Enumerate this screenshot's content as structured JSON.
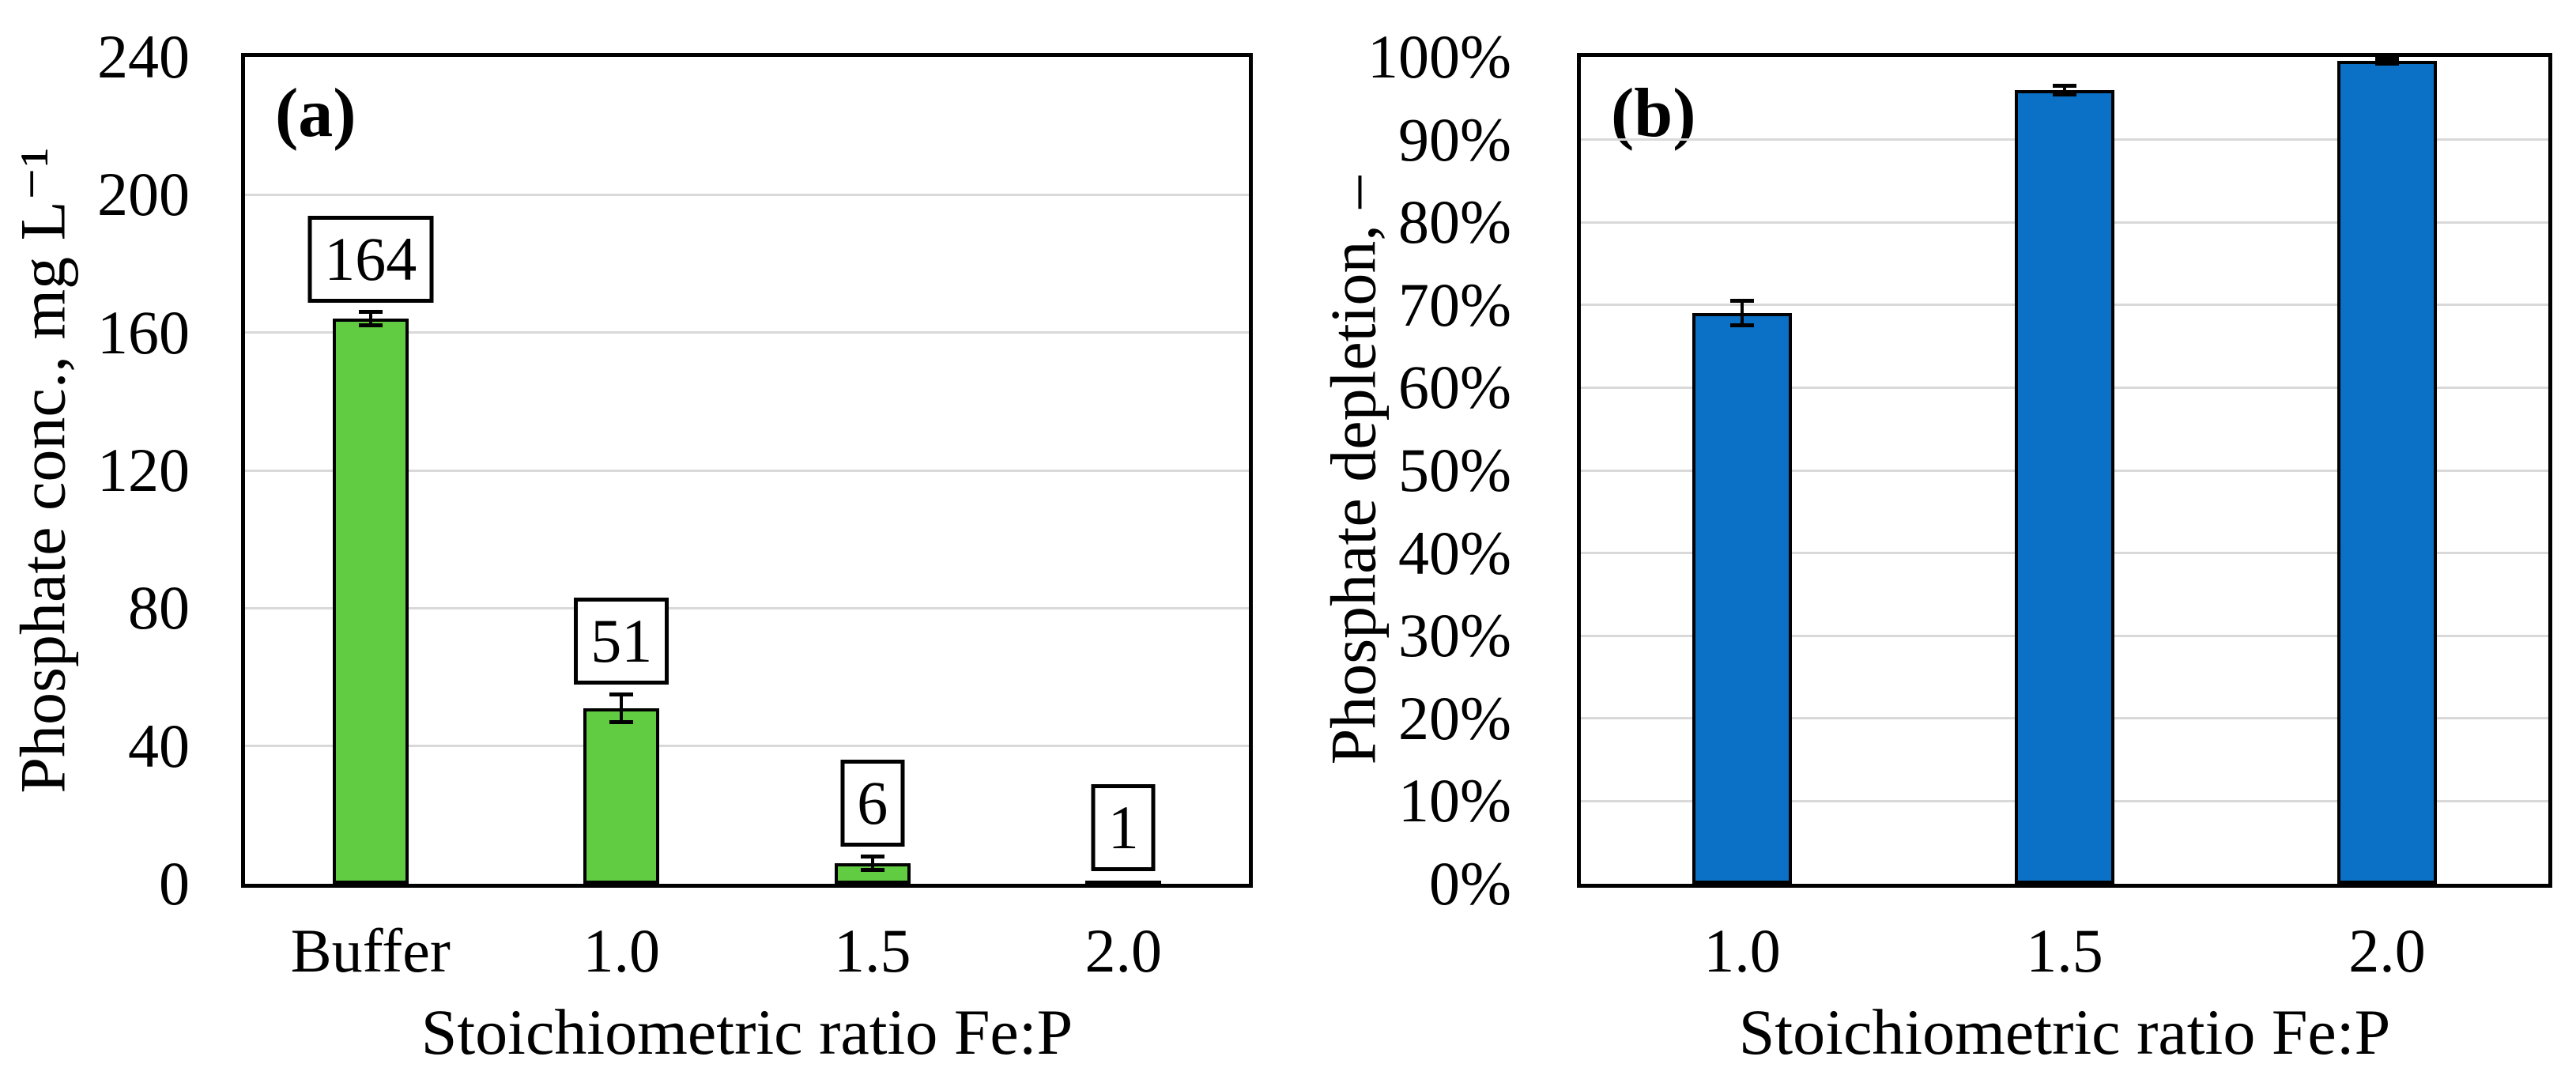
{
  "page": {
    "background": "#ffffff",
    "axis_color": "#000000",
    "grid_color": "#d9d9d9"
  },
  "chart_data": [
    {
      "type": "bar",
      "panel_label": "(a)",
      "categories": [
        "Buffer",
        "1.0",
        "1.5",
        "2.0"
      ],
      "values": [
        164,
        51,
        6,
        1
      ],
      "error_bars": [
        2,
        4,
        2,
        0
      ],
      "data_labels": [
        "164",
        "51",
        "6",
        "1"
      ],
      "xlabel": "Stoichiometric ratio Fe:P",
      "ylabel": "Phosphate conc., mg L⁻¹",
      "ylim": [
        0,
        240
      ],
      "ytick_step": 40,
      "ytick_labels": [
        "0",
        "40",
        "80",
        "120",
        "160",
        "200",
        "240"
      ],
      "grid": "horizontal",
      "legend": "none",
      "bar_color": "#61cb42",
      "bar_outline": "#000000"
    },
    {
      "type": "bar",
      "panel_label": "(b)",
      "categories": [
        "1.0",
        "1.5",
        "2.0"
      ],
      "values": [
        69,
        96,
        99.5
      ],
      "error_bars": [
        1.5,
        0.5,
        0.3
      ],
      "data_labels": null,
      "xlabel": "Stoichiometric ratio Fe:P",
      "ylabel": "Phosphate depletion, –",
      "ylim": [
        0,
        100
      ],
      "ytick_step": 10,
      "ytick_labels": [
        "0%",
        "10%",
        "20%",
        "30%",
        "40%",
        "50%",
        "60%",
        "70%",
        "80%",
        "90%",
        "100%"
      ],
      "grid": "horizontal",
      "legend": "none",
      "bar_color": "#0a71c7",
      "bar_outline": "#000000"
    }
  ]
}
